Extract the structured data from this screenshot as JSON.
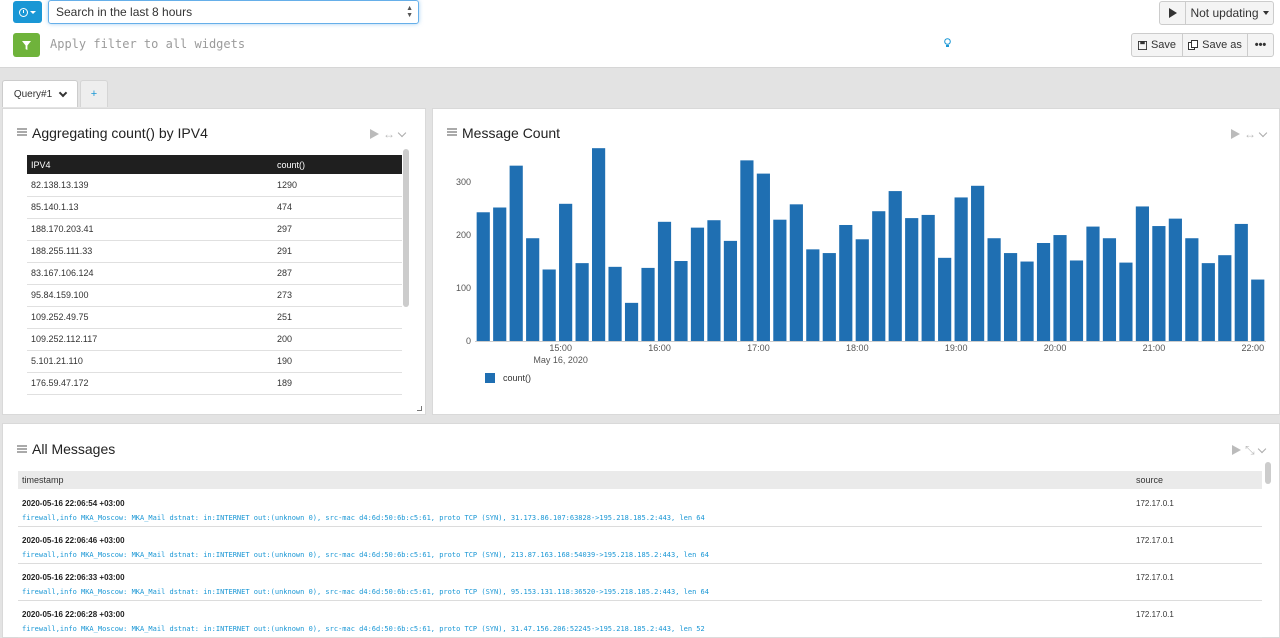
{
  "search": {
    "time_range": "Search in the last 8 hours",
    "filter_placeholder": "Apply filter to all widgets",
    "refresh_label": "Not updating",
    "save_label": "Save",
    "save_as_label": "Save as"
  },
  "tabs": [
    {
      "label": "Query#1"
    },
    {
      "label": "+"
    }
  ],
  "table_widget": {
    "title": "Aggregating count() by IPV4",
    "columns": [
      "IPV4",
      "count()"
    ],
    "rows": [
      [
        "82.138.13.139",
        "1290"
      ],
      [
        "85.140.1.13",
        "474"
      ],
      [
        "188.170.203.41",
        "297"
      ],
      [
        "188.255.111.33",
        "291"
      ],
      [
        "83.167.106.124",
        "287"
      ],
      [
        "95.84.159.100",
        "273"
      ],
      [
        "109.252.49.75",
        "251"
      ],
      [
        "109.252.112.117",
        "200"
      ],
      [
        "5.101.21.110",
        "190"
      ],
      [
        "176.59.47.172",
        "189"
      ]
    ]
  },
  "chart_widget": {
    "title": "Message Count"
  },
  "chart_data": {
    "type": "bar",
    "title": "Message Count",
    "xlabel": "",
    "ylabel": "",
    "ylim": [
      0,
      370
    ],
    "y_ticks": [
      0,
      100,
      200,
      300
    ],
    "x_ticks": [
      "15:00",
      "16:00",
      "17:00",
      "18:00",
      "19:00",
      "20:00",
      "21:00",
      "22:00"
    ],
    "x_subtitle": "May 16, 2020",
    "x_tick_offsets": [
      5.2,
      11.2,
      17.2,
      23.2,
      29.2,
      35.2,
      41.2,
      47.2
    ],
    "legend_position": "bottom-left",
    "series": [
      {
        "name": "count()",
        "color": "#1f6fb2",
        "values": [
          243,
          252,
          331,
          194,
          135,
          259,
          147,
          364,
          140,
          72,
          138,
          225,
          151,
          214,
          228,
          189,
          341,
          316,
          229,
          258,
          173,
          166,
          219,
          192,
          245,
          283,
          232,
          238,
          157,
          271,
          293,
          194,
          166,
          150,
          185,
          200,
          152,
          216,
          194,
          148,
          254,
          217,
          231,
          194,
          147,
          162,
          221,
          116
        ]
      }
    ]
  },
  "messages_widget": {
    "title": "All Messages",
    "columns": [
      "timestamp",
      "source"
    ],
    "rows": [
      {
        "timestamp": "2020-05-16 22:06:54 +03:00",
        "message": "firewall,info MKA_Moscow: MKA_Mail dstnat: in:INTERNET out:(unknown 0), src-mac d4:6d:50:6b:c5:61, proto TCP (SYN), 31.173.86.107:63828->195.218.185.2:443, len 64",
        "source": "172.17.0.1"
      },
      {
        "timestamp": "2020-05-16 22:06:46 +03:00",
        "message": "firewall,info MKA_Moscow: MKA_Mail dstnat: in:INTERNET out:(unknown 0), src-mac d4:6d:50:6b:c5:61, proto TCP (SYN), 213.87.163.168:54039->195.218.185.2:443, len 64",
        "source": "172.17.0.1"
      },
      {
        "timestamp": "2020-05-16 22:06:33 +03:00",
        "message": "firewall,info MKA_Moscow: MKA_Mail dstnat: in:INTERNET out:(unknown 0), src-mac d4:6d:50:6b:c5:61, proto TCP (SYN), 95.153.131.118:36520->195.218.185.2:443, len 64",
        "source": "172.17.0.1"
      },
      {
        "timestamp": "2020-05-16 22:06:28 +03:00",
        "message": "firewall,info MKA_Moscow: MKA_Mail dstnat: in:INTERNET out:(unknown 0), src-mac d4:6d:50:6b:c5:61, proto TCP (SYN), 31.47.156.206:52245->195.218.185.2:443, len 52",
        "source": "172.17.0.1"
      }
    ]
  },
  "colors": {
    "accent": "#1a97d5",
    "filter_green": "#6fb33b",
    "bar": "#1f6fb2",
    "table_header": "#1f1f1f"
  },
  "icons": {
    "time_button": "clock-icon",
    "filter_button": "filter-icon",
    "hint": "lightbulb-icon",
    "play": "play-icon",
    "save": "floppy-disk-icon",
    "save_as": "copy-icon",
    "more": "ellipsis-icon",
    "widget_drag": "drag-handle-icon",
    "widget_expand": "expand-horizontal-icon",
    "widget_menu": "chevron-down-icon"
  }
}
